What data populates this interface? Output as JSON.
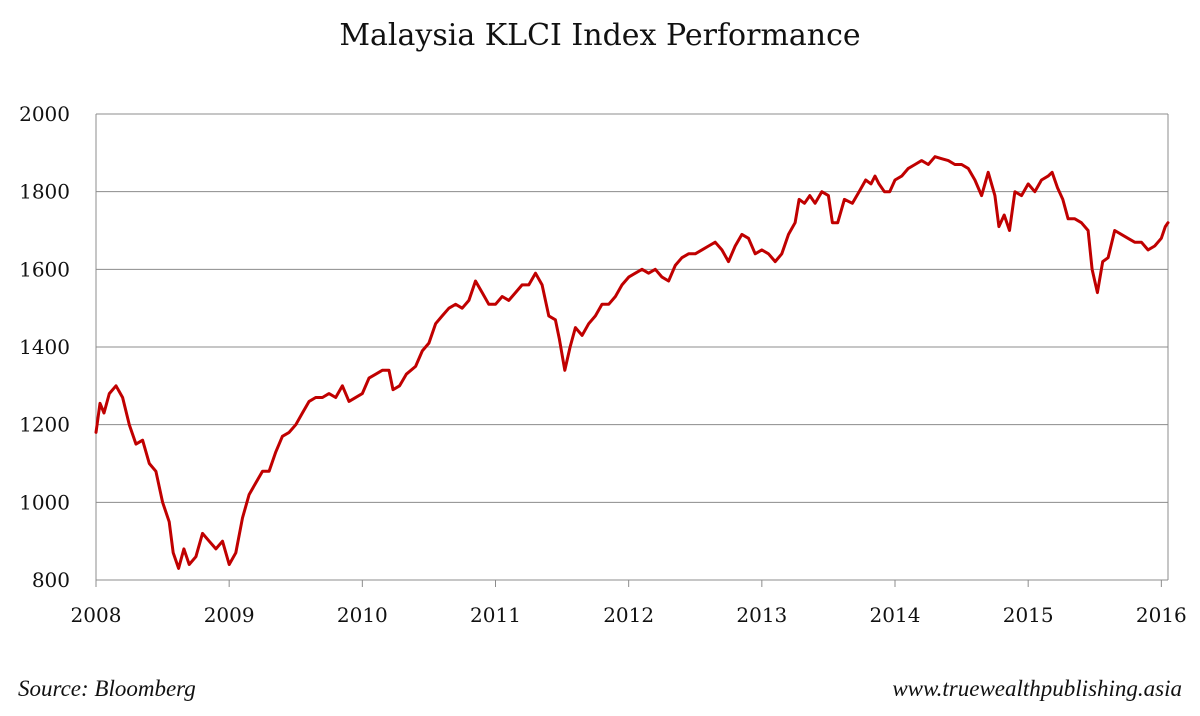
{
  "chart_data": {
    "type": "line",
    "title": "Malaysia KLCI Index Performance",
    "xlabel": "",
    "ylabel": "",
    "xlim": [
      2008.0,
      2016.05
    ],
    "ylim": [
      800,
      2000
    ],
    "x_ticks": [
      2008,
      2009,
      2010,
      2011,
      2012,
      2013,
      2014,
      2015,
      2016
    ],
    "x_tick_labels": [
      "2008",
      "2009",
      "2010",
      "2011",
      "2012",
      "2013",
      "2014",
      "2015",
      "2016"
    ],
    "y_ticks": [
      800,
      1000,
      1200,
      1400,
      1600,
      1800,
      2000
    ],
    "y_tick_labels": [
      "800",
      "1000",
      "1200",
      "1400",
      "1600",
      "1800",
      "2000"
    ],
    "grid": "horizontal",
    "series": [
      {
        "name": "KLCI",
        "color": "#c00000",
        "points": [
          [
            2008.0,
            1180
          ],
          [
            2008.03,
            1255
          ],
          [
            2008.06,
            1230
          ],
          [
            2008.1,
            1280
          ],
          [
            2008.15,
            1300
          ],
          [
            2008.2,
            1270
          ],
          [
            2008.25,
            1200
          ],
          [
            2008.3,
            1150
          ],
          [
            2008.35,
            1160
          ],
          [
            2008.4,
            1100
          ],
          [
            2008.45,
            1080
          ],
          [
            2008.5,
            1000
          ],
          [
            2008.55,
            950
          ],
          [
            2008.58,
            870
          ],
          [
            2008.62,
            830
          ],
          [
            2008.66,
            880
          ],
          [
            2008.7,
            840
          ],
          [
            2008.75,
            860
          ],
          [
            2008.8,
            920
          ],
          [
            2008.85,
            900
          ],
          [
            2008.9,
            880
          ],
          [
            2008.95,
            900
          ],
          [
            2009.0,
            840
          ],
          [
            2009.05,
            870
          ],
          [
            2009.1,
            960
          ],
          [
            2009.15,
            1020
          ],
          [
            2009.2,
            1050
          ],
          [
            2009.25,
            1080
          ],
          [
            2009.3,
            1080
          ],
          [
            2009.35,
            1130
          ],
          [
            2009.4,
            1170
          ],
          [
            2009.45,
            1180
          ],
          [
            2009.5,
            1200
          ],
          [
            2009.55,
            1230
          ],
          [
            2009.6,
            1260
          ],
          [
            2009.65,
            1270
          ],
          [
            2009.7,
            1270
          ],
          [
            2009.75,
            1280
          ],
          [
            2009.8,
            1270
          ],
          [
            2009.85,
            1300
          ],
          [
            2009.9,
            1260
          ],
          [
            2010.0,
            1280
          ],
          [
            2010.05,
            1320
          ],
          [
            2010.1,
            1330
          ],
          [
            2010.15,
            1340
          ],
          [
            2010.2,
            1340
          ],
          [
            2010.23,
            1290
          ],
          [
            2010.28,
            1300
          ],
          [
            2010.33,
            1330
          ],
          [
            2010.4,
            1350
          ],
          [
            2010.45,
            1390
          ],
          [
            2010.5,
            1410
          ],
          [
            2010.55,
            1460
          ],
          [
            2010.6,
            1480
          ],
          [
            2010.65,
            1500
          ],
          [
            2010.7,
            1510
          ],
          [
            2010.75,
            1500
          ],
          [
            2010.8,
            1520
          ],
          [
            2010.85,
            1570
          ],
          [
            2010.9,
            1540
          ],
          [
            2010.95,
            1510
          ],
          [
            2011.0,
            1510
          ],
          [
            2011.05,
            1530
          ],
          [
            2011.1,
            1520
          ],
          [
            2011.15,
            1540
          ],
          [
            2011.2,
            1560
          ],
          [
            2011.25,
            1560
          ],
          [
            2011.3,
            1590
          ],
          [
            2011.35,
            1560
          ],
          [
            2011.4,
            1480
          ],
          [
            2011.45,
            1470
          ],
          [
            2011.48,
            1420
          ],
          [
            2011.52,
            1340
          ],
          [
            2011.56,
            1400
          ],
          [
            2011.6,
            1450
          ],
          [
            2011.65,
            1430
          ],
          [
            2011.7,
            1460
          ],
          [
            2011.75,
            1480
          ],
          [
            2011.8,
            1510
          ],
          [
            2011.85,
            1510
          ],
          [
            2011.9,
            1530
          ],
          [
            2011.95,
            1560
          ],
          [
            2012.0,
            1580
          ],
          [
            2012.05,
            1590
          ],
          [
            2012.1,
            1600
          ],
          [
            2012.15,
            1590
          ],
          [
            2012.2,
            1600
          ],
          [
            2012.25,
            1580
          ],
          [
            2012.3,
            1570
          ],
          [
            2012.35,
            1610
          ],
          [
            2012.4,
            1630
          ],
          [
            2012.45,
            1640
          ],
          [
            2012.5,
            1640
          ],
          [
            2012.55,
            1650
          ],
          [
            2012.6,
            1660
          ],
          [
            2012.65,
            1670
          ],
          [
            2012.7,
            1650
          ],
          [
            2012.75,
            1620
          ],
          [
            2012.8,
            1660
          ],
          [
            2012.85,
            1690
          ],
          [
            2012.9,
            1680
          ],
          [
            2012.95,
            1640
          ],
          [
            2013.0,
            1650
          ],
          [
            2013.05,
            1640
          ],
          [
            2013.1,
            1620
          ],
          [
            2013.15,
            1640
          ],
          [
            2013.2,
            1690
          ],
          [
            2013.25,
            1720
          ],
          [
            2013.28,
            1780
          ],
          [
            2013.32,
            1770
          ],
          [
            2013.36,
            1790
          ],
          [
            2013.4,
            1770
          ],
          [
            2013.45,
            1800
          ],
          [
            2013.5,
            1790
          ],
          [
            2013.53,
            1720
          ],
          [
            2013.57,
            1720
          ],
          [
            2013.62,
            1780
          ],
          [
            2013.68,
            1770
          ],
          [
            2013.73,
            1800
          ],
          [
            2013.78,
            1830
          ],
          [
            2013.82,
            1820
          ],
          [
            2013.85,
            1840
          ],
          [
            2013.88,
            1820
          ],
          [
            2013.92,
            1800
          ],
          [
            2013.96,
            1800
          ],
          [
            2014.0,
            1830
          ],
          [
            2014.05,
            1840
          ],
          [
            2014.1,
            1860
          ],
          [
            2014.15,
            1870
          ],
          [
            2014.2,
            1880
          ],
          [
            2014.25,
            1870
          ],
          [
            2014.3,
            1890
          ],
          [
            2014.35,
            1885
          ],
          [
            2014.4,
            1880
          ],
          [
            2014.45,
            1870
          ],
          [
            2014.5,
            1870
          ],
          [
            2014.55,
            1860
          ],
          [
            2014.6,
            1830
          ],
          [
            2014.65,
            1790
          ],
          [
            2014.7,
            1850
          ],
          [
            2014.75,
            1790
          ],
          [
            2014.78,
            1710
          ],
          [
            2014.82,
            1740
          ],
          [
            2014.86,
            1700
          ],
          [
            2014.9,
            1800
          ],
          [
            2014.95,
            1790
          ],
          [
            2015.0,
            1820
          ],
          [
            2015.05,
            1800
          ],
          [
            2015.1,
            1830
          ],
          [
            2015.15,
            1840
          ],
          [
            2015.18,
            1850
          ],
          [
            2015.22,
            1810
          ],
          [
            2015.26,
            1780
          ],
          [
            2015.3,
            1730
          ],
          [
            2015.35,
            1730
          ],
          [
            2015.4,
            1720
          ],
          [
            2015.45,
            1700
          ],
          [
            2015.48,
            1600
          ],
          [
            2015.52,
            1540
          ],
          [
            2015.56,
            1620
          ],
          [
            2015.6,
            1630
          ],
          [
            2015.65,
            1700
          ],
          [
            2015.7,
            1690
          ],
          [
            2015.75,
            1680
          ],
          [
            2015.8,
            1670
          ],
          [
            2015.85,
            1670
          ],
          [
            2015.9,
            1650
          ],
          [
            2015.95,
            1660
          ],
          [
            2016.0,
            1680
          ],
          [
            2016.03,
            1710
          ],
          [
            2016.05,
            1720
          ]
        ]
      }
    ]
  },
  "footer": {
    "source": "Source: Bloomberg",
    "website": "www.truewealthpublishing.asia"
  },
  "colors": {
    "line": "#c00000",
    "grid": "#8c8c8c",
    "axis": "#8c8c8c",
    "text": "#111111"
  }
}
